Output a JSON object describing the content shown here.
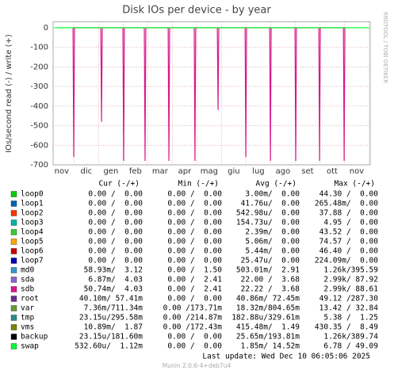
{
  "chart_data": {
    "type": "line",
    "title": "Disk IOs per device - by year",
    "y_label": "IOs/second read (-) / write (+)",
    "side_text": "RRDTOOL / TOBI OETIKER",
    "categories": [
      "nov",
      "dic",
      "gen",
      "feb",
      "mar",
      "apr",
      "mag",
      "giu",
      "lug",
      "ago",
      "set",
      "ott",
      "nov"
    ],
    "xlim": [
      0.15,
      13.05
    ],
    "ylim": [
      -700,
      30
    ],
    "yticks": [
      0,
      -100,
      -200,
      -300,
      -400,
      -500,
      -600,
      -700
    ],
    "grid": true,
    "legend_headers": [
      "Cur (-/+)",
      "Min (-/+)",
      "Avg (-/+)",
      "Max (-/+)"
    ],
    "series": [
      {
        "name": "loop0",
        "color": "#00cc00",
        "cur": "0.00 /  0.00",
        "min": "0.00 /  0.00",
        "avg": "3.00m/  0.00",
        "max": "44.30 /  0.00"
      },
      {
        "name": "loop1",
        "color": "#0066b3",
        "cur": "0.00 /  0.00",
        "min": "0.00 /  0.00",
        "avg": "41.76u/  0.00",
        "max": "265.48m/  0.00"
      },
      {
        "name": "loop2",
        "color": "#ff3300",
        "cur": "0.00 /  0.00",
        "min": "0.00 /  0.00",
        "avg": "542.98u/  0.00",
        "max": "37.88 /  0.00"
      },
      {
        "name": "loop3",
        "color": "#00b3a0",
        "cur": "0.00 /  0.00",
        "min": "0.00 /  0.00",
        "avg": "154.73u/  0.00",
        "max": "4.95 /  0.00"
      },
      {
        "name": "loop4",
        "color": "#33cc33",
        "cur": "0.00 /  0.00",
        "min": "0.00 /  0.00",
        "avg": "2.39m/  0.00",
        "max": "43.52 /  0.00"
      },
      {
        "name": "loop5",
        "color": "#ffa500",
        "cur": "0.00 /  0.00",
        "min": "0.00 /  0.00",
        "avg": "5.06m/  0.00",
        "max": "74.57 /  0.00"
      },
      {
        "name": "loop6",
        "color": "#cc0000",
        "cur": "0.00 /  0.00",
        "min": "0.00 /  0.00",
        "avg": "5.44m/  0.00",
        "max": "46.40 /  0.00"
      },
      {
        "name": "loop7",
        "color": "#0000b3",
        "cur": "0.00 /  0.00",
        "min": "0.00 /  0.00",
        "avg": "25.47u/  0.00",
        "max": "224.09m/  0.00"
      },
      {
        "name": "md0",
        "color": "#3399cc",
        "cur": "58.93m/  3.12",
        "min": "0.00 /  1.50",
        "avg": "503.01m/  2.91",
        "max": "1.26k/395.59"
      },
      {
        "name": "sda",
        "color": "#8866cc",
        "cur": "6.87m/  4.03",
        "min": "0.00 /  2.41",
        "avg": "22.00 /  3.68",
        "max": "2.99k/ 87.92"
      },
      {
        "name": "sdb",
        "color": "#d9168a",
        "cur": "50.74m/  4.03",
        "min": "0.00 /  2.41",
        "avg": "22.22 /  3.68",
        "max": "2.99k/ 88.61",
        "x": [
          0.96,
          0.99,
          1.02,
          2.09,
          2.12,
          2.15,
          2.99,
          3.02,
          3.05,
          3.86,
          3.89,
          3.92,
          4.83,
          4.86,
          4.89,
          5.89,
          5.92,
          5.95,
          6.83,
          6.86,
          6.89,
          7.96,
          7.99,
          8.02,
          8.96,
          8.99,
          9.02,
          9.99,
          10.02,
          10.05,
          10.96,
          10.99,
          11.02,
          11.96,
          11.99,
          12.02
        ],
        "values": [
          0,
          -660,
          0,
          0,
          -480,
          0,
          0,
          -680,
          0,
          0,
          -680,
          0,
          0,
          -680,
          0,
          0,
          -680,
          0,
          0,
          -420,
          0,
          0,
          -660,
          0,
          0,
          -680,
          0,
          0,
          -680,
          0,
          0,
          -680,
          0,
          0,
          -680,
          0
        ]
      },
      {
        "name": "root",
        "color": "#6b2d8f",
        "cur": "40.10m/ 57.41m",
        "min": "0.00 /  0.00",
        "avg": "40.86m/ 72.45m",
        "max": "49.12 /287.30"
      },
      {
        "name": "var",
        "color": "#669933",
        "cur": "7.36m/711.34m",
        "min": "0.00 /173.71m",
        "avg": "18.32m/804.65m",
        "max": "13.42 / 32.84"
      },
      {
        "name": "tmp",
        "color": "#2e8b8b",
        "cur": "23.15u/295.58m",
        "min": "0.00 /214.87m",
        "avg": "182.88u/329.61m",
        "max": "5.38 /  1.25"
      },
      {
        "name": "vms",
        "color": "#808000",
        "cur": "10.89m/  1.87",
        "min": "0.00 /172.43m",
        "avg": "415.48m/  1.49",
        "max": "430.35 /  8.49"
      },
      {
        "name": "backup",
        "color": "#000000",
        "cur": "23.15u/181.60m",
        "min": "0.00 /  0.00",
        "avg": "25.65m/193.81m",
        "max": "1.26k/389.74"
      },
      {
        "name": "swap",
        "color": "#00ff33",
        "cur": "532.60u/  1.12m",
        "min": "0.00 /  0.00",
        "avg": "1.85m/ 14.52m",
        "max": "6.78 / 49.09",
        "x": [
          0.2,
          13
        ],
        "values": [
          0,
          0
        ]
      }
    ],
    "last_update": "Last update: Wed Dec 10 06:05:06 2025",
    "footer": "Munin 2.0.6-4+deb7u4"
  }
}
